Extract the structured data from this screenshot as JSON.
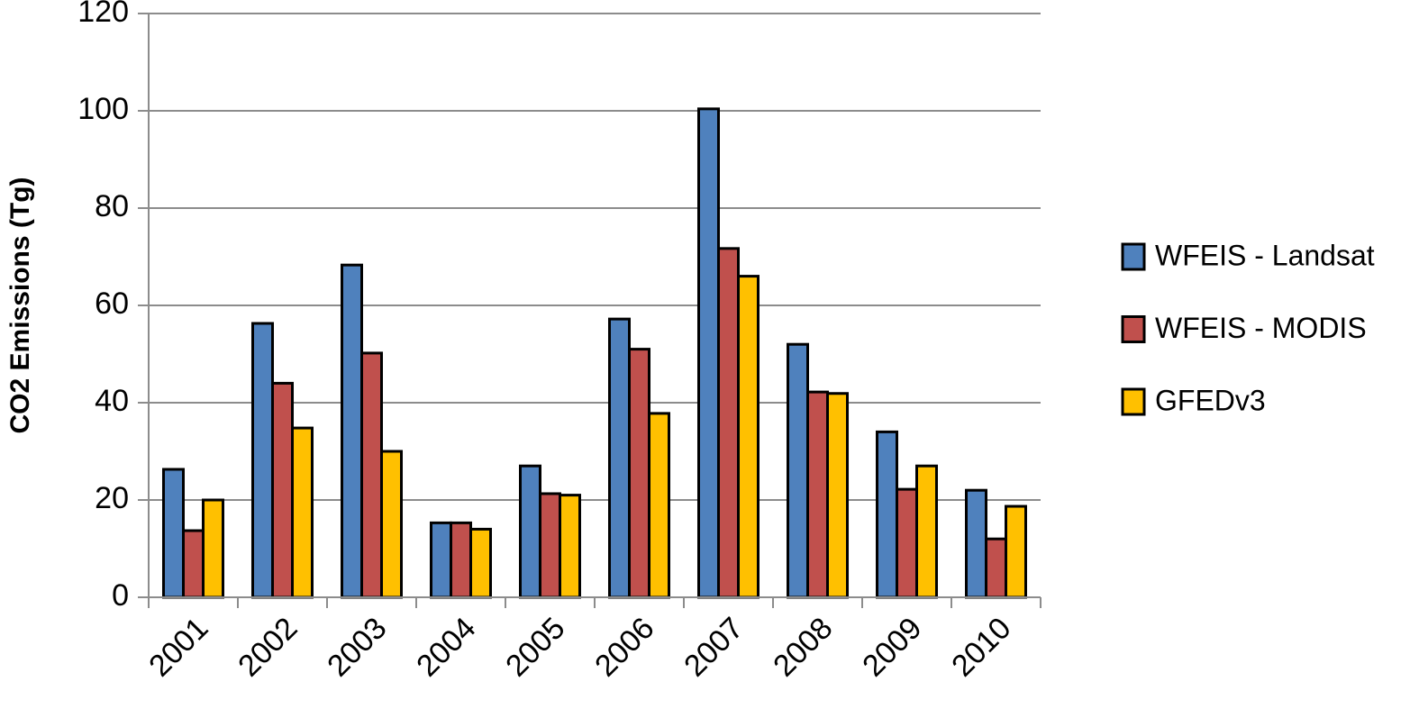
{
  "chart_data": {
    "type": "bar",
    "y_label": "CO2 Emissions (Tg)",
    "categories": [
      "2001",
      "2002",
      "2003",
      "2004",
      "2005",
      "2006",
      "2007",
      "2008",
      "2009",
      "2010"
    ],
    "series": [
      {
        "name": "WFEIS - Landsat",
        "color": "#4f81bd",
        "values": [
          26.3,
          56.3,
          68.3,
          15.3,
          27,
          57.2,
          100.4,
          52,
          34,
          22
        ]
      },
      {
        "name": "WFEIS - MODIS",
        "color": "#c0504d",
        "values": [
          13.7,
          44,
          50.2,
          15.3,
          21.3,
          51,
          71.7,
          42.2,
          22.2,
          12
        ]
      },
      {
        "name": "GFEDv3",
        "color": "#ffc000",
        "values": [
          20,
          34.8,
          30,
          14,
          21,
          37.8,
          66,
          41.9,
          27,
          18.7
        ]
      }
    ],
    "ylim": [
      0,
      120
    ],
    "yticks": [
      0,
      20,
      40,
      60,
      80,
      100,
      120
    ],
    "grid": true
  }
}
